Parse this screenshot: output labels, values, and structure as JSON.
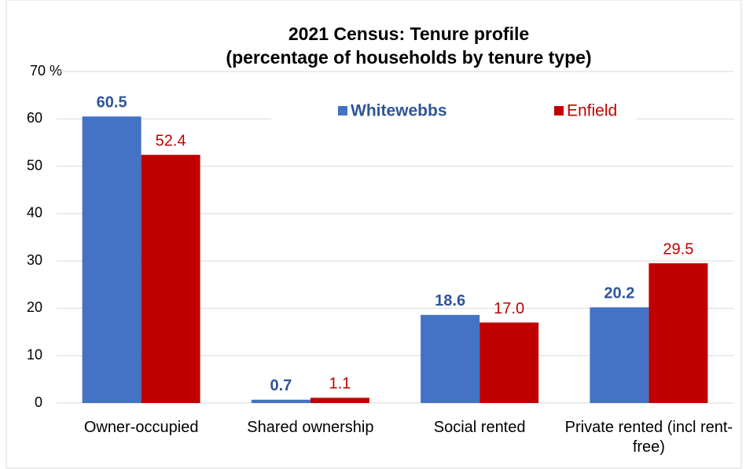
{
  "chart_data": {
    "type": "bar",
    "title": [
      "2021 Census: Tenure profile",
      "(percentage of households by tenure type)"
    ],
    "categories": [
      "Owner-occupied",
      "Shared ownership",
      "Social rented",
      "Private rented (incl rent-free)"
    ],
    "series": [
      {
        "name": "Whitewebbs",
        "color": "#4472c4",
        "label_color": "#2f5597",
        "values": [
          60.5,
          0.7,
          18.6,
          20.2
        ]
      },
      {
        "name": "Enfield",
        "color": "#c00000",
        "label_color": "#c00000",
        "values": [
          52.4,
          1.1,
          17.0,
          29.5
        ],
        "value_labels": [
          "52.4",
          "1.1",
          "17.0",
          "29.5"
        ]
      }
    ],
    "ylim": [
      0,
      70
    ],
    "yticks": [
      0,
      10,
      20,
      30,
      40,
      50,
      60,
      {
        "value": 70,
        "label": "70 %"
      }
    ],
    "grid": true,
    "legend": "top"
  }
}
